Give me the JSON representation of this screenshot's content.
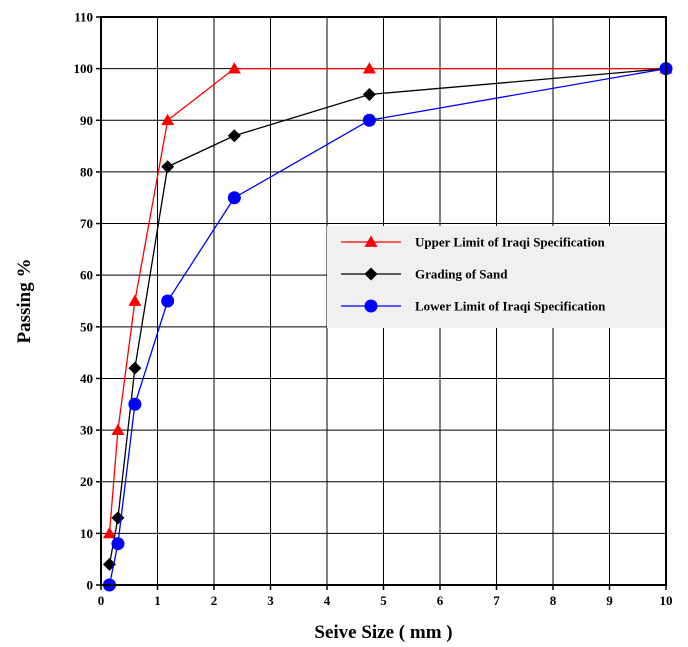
{
  "chart_data": {
    "type": "line",
    "xlabel": "Seive Size ( mm )",
    "ylabel": "Passing %",
    "xlim": [
      0,
      10
    ],
    "ylim": [
      0,
      110
    ],
    "xticks": [
      "0",
      "1",
      "2",
      "3",
      "4",
      "5",
      "6",
      "7",
      "8",
      "9",
      "10"
    ],
    "yticks": [
      "0",
      "10",
      "20",
      "30",
      "40",
      "50",
      "60",
      "70",
      "80",
      "90",
      "100",
      "110"
    ],
    "grid": true,
    "legend_position": "right",
    "series": [
      {
        "name": "Upper Limit of Iraqi Specification",
        "color": "#ff0000",
        "marker": "triangle",
        "x": [
          0.15,
          0.3,
          0.6,
          1.18,
          2.36,
          4.75,
          10
        ],
        "y": [
          10,
          30,
          55,
          90,
          100,
          100,
          100
        ]
      },
      {
        "name": "Grading of Sand",
        "color": "#000000",
        "marker": "diamond",
        "x": [
          0.15,
          0.3,
          0.6,
          1.18,
          2.36,
          4.75,
          10
        ],
        "y": [
          4,
          13,
          42,
          81,
          87,
          95,
          100
        ]
      },
      {
        "name": "Lower Limit of Iraqi Specification",
        "color": "#0000ff",
        "marker": "circle",
        "x": [
          0.15,
          0.3,
          0.6,
          1.18,
          2.36,
          4.75,
          10
        ],
        "y": [
          0,
          8,
          35,
          55,
          75,
          90,
          100
        ]
      }
    ]
  }
}
